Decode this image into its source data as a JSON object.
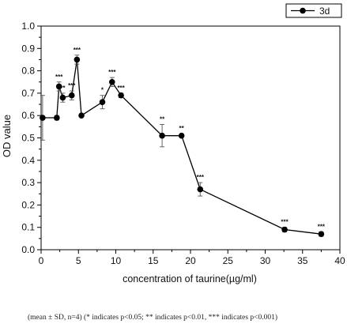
{
  "chart_data": {
    "type": "line",
    "title": "",
    "xlabel": "concentration of  taurine(µg/ml)",
    "ylabel": "OD value",
    "xlim": [
      0,
      40
    ],
    "ylim": [
      0.0,
      1.0
    ],
    "x_ticks": [
      0,
      5,
      10,
      15,
      20,
      25,
      30,
      35,
      40
    ],
    "y_ticks": [
      0.0,
      0.1,
      0.2,
      0.3,
      0.4,
      0.5,
      0.6,
      0.7,
      0.8,
      0.9,
      1.0
    ],
    "x_tick_labels": [
      "0",
      "5",
      "10",
      "15",
      "20",
      "25",
      "30",
      "35",
      "40"
    ],
    "y_tick_labels": [
      "0.0",
      "0.1",
      "0.2",
      "0.3",
      "0.4",
      "0.5",
      "0.6",
      "0.7",
      "0.8",
      "0.9",
      "1.0"
    ],
    "grid": false,
    "legend_position": "top-right",
    "series": [
      {
        "name": "3d",
        "color": "#000000",
        "x": [
          0.2,
          2.1,
          2.4,
          2.9,
          4.1,
          4.8,
          5.4,
          8.2,
          9.5,
          10.7,
          16.2,
          18.8,
          21.3,
          32.6,
          37.5
        ],
        "y": [
          0.59,
          0.59,
          0.73,
          0.68,
          0.69,
          0.85,
          0.6,
          0.66,
          0.75,
          0.69,
          0.51,
          0.51,
          0.27,
          0.09,
          0.07
        ],
        "err": [
          0.1,
          0.01,
          0.02,
          0.02,
          0.02,
          0.02,
          0.0,
          0.03,
          0.02,
          0.01,
          0.05,
          0.0,
          0.03,
          0.01,
          0.01
        ],
        "annotations": [
          "",
          "",
          "***",
          "**",
          "***",
          "***",
          "",
          "*",
          "***",
          "***",
          "**",
          "**",
          "***",
          "***",
          "***"
        ]
      }
    ]
  },
  "footnote": "(mean ± SD, n=4)  (* indicates p<0.05; ** indicates p<0.01, *** indicates p<0.001)"
}
